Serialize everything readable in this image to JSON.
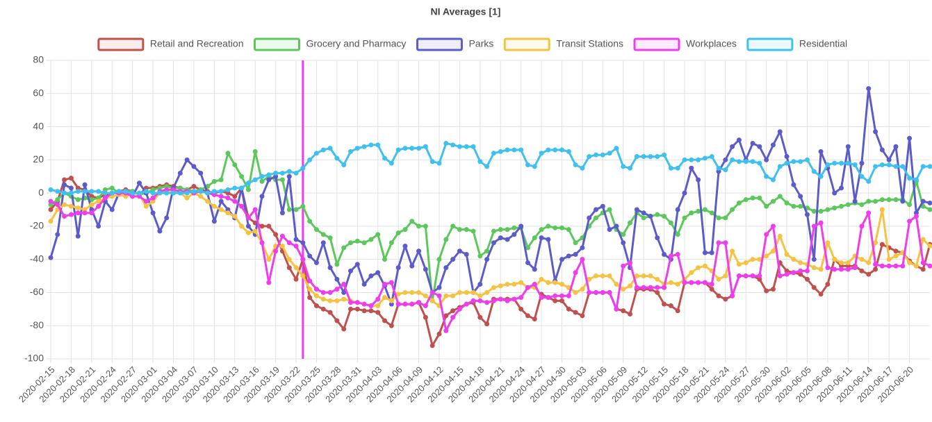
{
  "chart_data": {
    "type": "line",
    "title": "NI Averages [1]",
    "categories": [
      "2020-02-15",
      null,
      null,
      "2020-02-18",
      null,
      null,
      "2020-02-21",
      null,
      null,
      "2020-02-24",
      null,
      null,
      "2020-02-27",
      null,
      null,
      "2020-03-01",
      null,
      null,
      "2020-03-04",
      null,
      null,
      "2020-03-07",
      null,
      null,
      "2020-03-10",
      null,
      null,
      "2020-03-13",
      null,
      null,
      "2020-03-16",
      null,
      null,
      "2020-03-19",
      null,
      null,
      "2020-03-22",
      null,
      null,
      "2020-03-25",
      null,
      null,
      "2020-03-28",
      null,
      null,
      "2020-03-31",
      null,
      null,
      "2020-04-03",
      null,
      null,
      "2020-04-06",
      null,
      null,
      "2020-04-09",
      null,
      null,
      "2020-04-12",
      null,
      null,
      "2020-04-15",
      null,
      null,
      "2020-04-18",
      null,
      null,
      "2020-04-21",
      null,
      null,
      "2020-04-24",
      null,
      null,
      "2020-04-27",
      null,
      null,
      "2020-04-30",
      null,
      null,
      "2020-05-03",
      null,
      null,
      "2020-05-06",
      null,
      null,
      "2020-05-09",
      null,
      null,
      "2020-05-12",
      null,
      null,
      "2020-05-15",
      null,
      null,
      "2020-05-18",
      null,
      null,
      "2020-05-21",
      null,
      null,
      "2020-05-24",
      null,
      null,
      "2020-05-27",
      null,
      null,
      "2020-05-30",
      null,
      null,
      "2020-06-02",
      null,
      null,
      "2020-06-05",
      null,
      null,
      "2020-06-08",
      null,
      null,
      "2020-06-11",
      null,
      null,
      "2020-06-14",
      null,
      null,
      "2020-06-17",
      null,
      null,
      "2020-06-20",
      null,
      null,
      null
    ],
    "series": [
      {
        "name": "Retail and Recreation",
        "color": "#c0504d",
        "values": [
          -10,
          -5,
          8,
          9,
          3,
          2,
          -2,
          -3,
          -1,
          0,
          1,
          2,
          1,
          -1,
          3,
          3,
          4,
          5,
          4,
          3,
          2,
          4,
          2,
          1,
          0,
          1,
          0,
          -2,
          3,
          -15,
          -18,
          -20,
          -20,
          -25,
          -35,
          -45,
          -52,
          -40,
          -63,
          -68,
          -70,
          -72,
          -77,
          -82,
          -70,
          -70,
          -71,
          -71,
          -72,
          -77,
          -80,
          -67,
          -67,
          -67,
          -66,
          -75,
          -92,
          -85,
          -74,
          -71,
          -69,
          -67,
          -66,
          -75,
          -79,
          -64,
          -64,
          -64,
          -64,
          -70,
          -74,
          -76,
          -61,
          -63,
          -65,
          -65,
          -70,
          -72,
          -74,
          -60,
          -60,
          -60,
          -60,
          -70,
          -71,
          -73,
          -58,
          -58,
          -58,
          -60,
          -67,
          -68,
          -71,
          -54,
          -54,
          -54,
          -54,
          -58,
          -62,
          -64,
          -62,
          -50,
          -50,
          -50,
          -52,
          -59,
          -58,
          -42,
          -47,
          -48,
          -49,
          -52,
          -57,
          -61,
          -55,
          -40,
          -44,
          -44,
          -44,
          -47,
          -49,
          -46,
          -31,
          -33,
          -35,
          -36,
          -41,
          -44,
          -46,
          -31
        ]
      },
      {
        "name": "Grocery and Pharmacy",
        "color": "#5cc85c",
        "values": [
          -7,
          -4,
          0,
          -2,
          -4,
          -3,
          -4,
          -3,
          2,
          3,
          0,
          1,
          1,
          -1,
          0,
          2,
          3,
          4,
          3,
          3,
          2,
          1,
          2,
          4,
          7,
          8,
          24,
          17,
          10,
          2,
          25,
          7,
          10,
          8,
          8,
          -10,
          -10,
          -8,
          -17,
          -22,
          -25,
          -27,
          -43,
          -33,
          -30,
          -29,
          -30,
          -28,
          -25,
          -40,
          -30,
          -24,
          -22,
          -17,
          -20,
          -20,
          -65,
          -40,
          -28,
          -20,
          -22,
          -22,
          -23,
          -38,
          -35,
          -23,
          -22,
          -22,
          -21,
          -21,
          -33,
          -27,
          -22,
          -20,
          -21,
          -21,
          -22,
          -30,
          -27,
          -20,
          -15,
          -12,
          -10,
          -22,
          -25,
          -18,
          -12,
          -15,
          -14,
          -13,
          -14,
          -18,
          -25,
          -15,
          -12,
          -11,
          -10,
          -12,
          -15,
          -15,
          -10,
          -6,
          -4,
          -3,
          -3,
          -8,
          -5,
          -2,
          -6,
          -8,
          -8,
          -9,
          -11,
          -11,
          -10,
          -9,
          -8,
          -7,
          -6,
          -7,
          -5,
          -5,
          -4,
          -4,
          -4,
          -4,
          -7,
          7,
          -8,
          -10
        ]
      },
      {
        "name": "Parks",
        "color": "#5b5bc9",
        "values": [
          -39,
          -25,
          5,
          3,
          -26,
          5,
          -10,
          -20,
          -5,
          -10,
          0,
          0,
          -2,
          6,
          0,
          -12,
          -23,
          -15,
          3,
          12,
          20,
          16,
          12,
          0,
          -17,
          -5,
          -10,
          -15,
          3,
          -20,
          -25,
          -2,
          8,
          10,
          -12,
          10,
          -28,
          -30,
          -38,
          -42,
          -30,
          -45,
          -52,
          -60,
          -47,
          -43,
          -55,
          -50,
          -48,
          -56,
          -67,
          -45,
          -32,
          -44,
          -35,
          -46,
          -60,
          -57,
          -45,
          -40,
          -35,
          -37,
          -60,
          -55,
          -40,
          -30,
          -27,
          -28,
          -25,
          -20,
          -42,
          -46,
          -27,
          -28,
          -53,
          -40,
          -38,
          -37,
          -33,
          -15,
          -10,
          -8,
          -22,
          -20,
          -30,
          -45,
          -10,
          -12,
          -14,
          -27,
          -37,
          -40,
          -10,
          0,
          15,
          8,
          -36,
          -36,
          13,
          20,
          28,
          32,
          20,
          30,
          28,
          20,
          29,
          37,
          22,
          5,
          -2,
          -13,
          -40,
          25,
          15,
          0,
          3,
          28,
          -5,
          18,
          63,
          37,
          26,
          20,
          28,
          -5,
          33,
          -12,
          -5,
          -6
        ]
      },
      {
        "name": "Transit Stations",
        "color": "#f5c242",
        "values": [
          -17,
          -10,
          -7,
          -8,
          -9,
          -10,
          -7,
          -5,
          -3,
          -2,
          -1,
          -2,
          0,
          -1,
          -8,
          -5,
          0,
          1,
          1,
          0,
          -3,
          0,
          -2,
          -5,
          -8,
          -10,
          -12,
          -14,
          -20,
          -24,
          -23,
          -30,
          -40,
          -32,
          -32,
          -40,
          -45,
          -50,
          -58,
          -62,
          -64,
          -65,
          -65,
          -64,
          -65,
          -66,
          -67,
          -68,
          -68,
          -63,
          -65,
          -61,
          -60,
          -60,
          -60,
          -62,
          -65,
          -68,
          -62,
          -62,
          -60,
          -60,
          -60,
          -62,
          -60,
          -57,
          -56,
          -55,
          -55,
          -54,
          -57,
          -57,
          -52,
          -54,
          -54,
          -55,
          -57,
          -60,
          -58,
          -52,
          -50,
          -50,
          -50,
          -55,
          -58,
          -56,
          -50,
          -50,
          -50,
          -52,
          -55,
          -54,
          -55,
          -52,
          -48,
          -45,
          -44,
          -47,
          -52,
          -50,
          -35,
          -43,
          -42,
          -40,
          -40,
          -38,
          -35,
          -26,
          -37,
          -40,
          -42,
          -43,
          -45,
          -46,
          -30,
          -40,
          -42,
          -42,
          -38,
          -40,
          -42,
          -30,
          -10,
          -40,
          -38,
          -36,
          -42,
          -44,
          -28,
          -32
        ]
      },
      {
        "name": "Workplaces",
        "color": "#ee3cee",
        "values": [
          -5,
          -7,
          -14,
          -13,
          -12,
          -12,
          -12,
          -8,
          -3,
          0,
          0,
          0,
          -2,
          -2,
          -5,
          -3,
          1,
          2,
          2,
          1,
          1,
          0,
          1,
          0,
          -1,
          -2,
          -3,
          -5,
          -8,
          -15,
          -10,
          -30,
          -54,
          -35,
          -26,
          -30,
          -32,
          -40,
          -53,
          -58,
          -60,
          -60,
          -58,
          -55,
          -66,
          -66,
          -67,
          -68,
          -64,
          -55,
          -54,
          -67,
          -67,
          -67,
          -66,
          -68,
          -60,
          -62,
          -83,
          -75,
          -70,
          -67,
          -65,
          -65,
          -66,
          -65,
          -64,
          -65,
          -64,
          -63,
          -57,
          -55,
          -63,
          -63,
          -62,
          -62,
          -62,
          -48,
          -40,
          -60,
          -60,
          -60,
          -60,
          -70,
          -44,
          -42,
          -57,
          -57,
          -57,
          -57,
          -57,
          -38,
          -37,
          -54,
          -54,
          -54,
          -54,
          -55,
          -30,
          -30,
          -62,
          -50,
          -50,
          -50,
          -50,
          -25,
          -20,
          -50,
          -49,
          -48,
          -47,
          -47,
          -20,
          -18,
          -45,
          -46,
          -46,
          -46,
          -45,
          -20,
          -12,
          -43,
          -44,
          -44,
          -44,
          -44,
          -17,
          -14,
          -42,
          -44
        ]
      },
      {
        "name": "Residential",
        "color": "#3ec1ef",
        "values": [
          2,
          1,
          0,
          0,
          1,
          1,
          1,
          1,
          0,
          0,
          1,
          1,
          0,
          0,
          1,
          0,
          0,
          0,
          0,
          0,
          0,
          1,
          1,
          0,
          1,
          1,
          2,
          3,
          3,
          6,
          8,
          10,
          11,
          12,
          12,
          13,
          12,
          15,
          20,
          24,
          26,
          27,
          21,
          17,
          25,
          27,
          28,
          29,
          29,
          21,
          18,
          26,
          27,
          27,
          27,
          28,
          19,
          18,
          30,
          29,
          28,
          28,
          28,
          19,
          16,
          24,
          25,
          26,
          26,
          26,
          17,
          16,
          24,
          26,
          26,
          26,
          25,
          17,
          15,
          22,
          23,
          23,
          24,
          27,
          16,
          15,
          22,
          22,
          22,
          22,
          23,
          15,
          15,
          20,
          20,
          20,
          21,
          22,
          15,
          14,
          20,
          19,
          19,
          19,
          18,
          10,
          8,
          16,
          18,
          19,
          19,
          20,
          13,
          10,
          17,
          18,
          18,
          18,
          17,
          10,
          7,
          16,
          17,
          17,
          16,
          16,
          9,
          8,
          16,
          16
        ]
      }
    ],
    "ylim": [
      -100,
      80
    ],
    "yticks": [
      -100,
      -80,
      -60,
      -40,
      -20,
      0,
      20,
      40,
      60,
      80
    ],
    "grid": true,
    "vline_index": 37,
    "vline_color": "#ee3cee"
  }
}
